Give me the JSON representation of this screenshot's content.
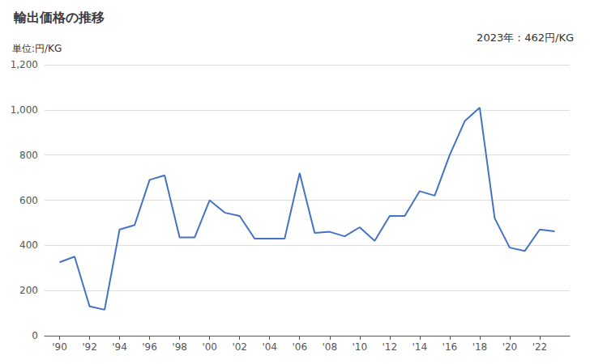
{
  "chart_data": {
    "type": "line",
    "title": "輸出価格の推移",
    "ylabel": "単位:円/KG",
    "annotations": [
      "2023年：462円/KG"
    ],
    "x": [
      1990,
      1991,
      1992,
      1993,
      1994,
      1995,
      1996,
      1997,
      1998,
      1999,
      2000,
      2001,
      2002,
      2003,
      2004,
      2005,
      2006,
      2007,
      2008,
      2009,
      2010,
      2011,
      2012,
      2013,
      2014,
      2015,
      2016,
      2017,
      2018,
      2019,
      2020,
      2021,
      2022,
      2023
    ],
    "values": [
      325,
      350,
      130,
      115,
      470,
      490,
      690,
      710,
      435,
      435,
      600,
      545,
      530,
      430,
      430,
      430,
      720,
      455,
      460,
      440,
      480,
      420,
      530,
      530,
      640,
      620,
      800,
      950,
      1010,
      520,
      390,
      375,
      470,
      462
    ],
    "color": "#4472C4",
    "xlim": [
      1989,
      2024
    ],
    "xticks": [
      {
        "value": 1990,
        "label": "'90"
      },
      {
        "value": 1992,
        "label": "'92"
      },
      {
        "value": 1994,
        "label": "'94"
      },
      {
        "value": 1996,
        "label": "'96"
      },
      {
        "value": 1998,
        "label": "'98"
      },
      {
        "value": 2000,
        "label": "'00"
      },
      {
        "value": 2002,
        "label": "'02"
      },
      {
        "value": 2004,
        "label": "'04"
      },
      {
        "value": 2006,
        "label": "'06"
      },
      {
        "value": 2008,
        "label": "'08"
      },
      {
        "value": 2010,
        "label": "'10"
      },
      {
        "value": 2012,
        "label": "'12"
      },
      {
        "value": 2014,
        "label": "'14"
      },
      {
        "value": 2016,
        "label": "'16"
      },
      {
        "value": 2018,
        "label": "'18"
      },
      {
        "value": 2020,
        "label": "'20"
      },
      {
        "value": 2022,
        "label": "'22"
      }
    ],
    "ylim": [
      0,
      1200
    ],
    "yticks": [
      0,
      200,
      400,
      600,
      800,
      {
        "value": 1000,
        "label": "1,000"
      },
      {
        "value": 1200,
        "label": "1,200"
      }
    ],
    "grid": true
  }
}
